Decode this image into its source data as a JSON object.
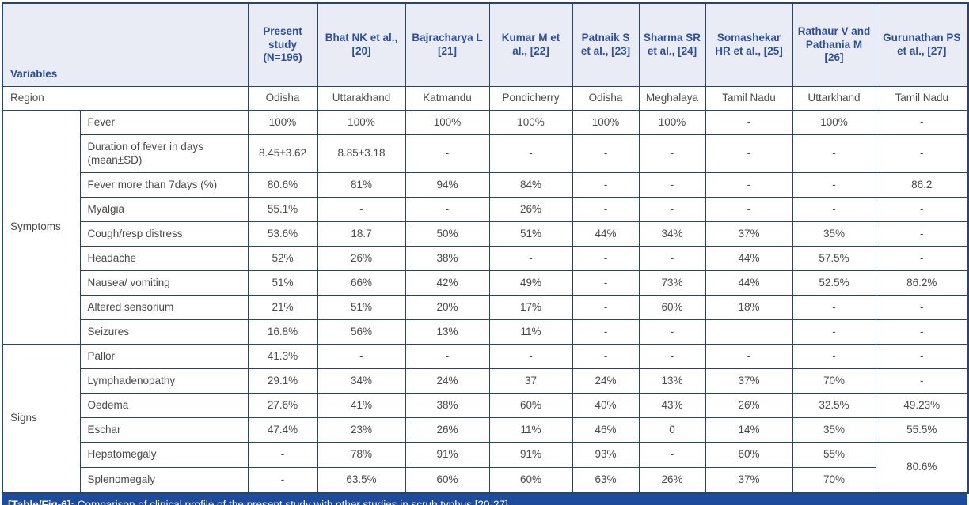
{
  "colors": {
    "border": "#264672",
    "header_bg": "#e9ebf5",
    "header_text": "#2d4f9f",
    "body_text": "#4a4a4a",
    "caption_bg": "#1e4c9c"
  },
  "table": {
    "header": {
      "variables_label": "Variables",
      "studies": [
        "Present study (N=196)",
        "Bhat NK et al., [20]",
        "Bajracharya L [21]",
        "Kumar M et al., [22]",
        "Patnaik S et al., [23]",
        "Sharma SR et al., [24]",
        "Somashekar HR et al., [25]",
        "Rathaur V and Pathania M [26]",
        "Gurunathan PS et al., [27]"
      ]
    },
    "region_row": {
      "label": "Region",
      "values": [
        "Odisha",
        "Uttarakhand",
        "Katmandu",
        "Pondicherry",
        "Odisha",
        "Meghalaya",
        "Tamil Nadu",
        "Uttarkhand",
        "Tamil Nadu"
      ]
    },
    "groups": [
      {
        "name": "Symptoms",
        "rows": [
          {
            "label": "Fever",
            "values": [
              "100%",
              "100%",
              "100%",
              "100%",
              "100%",
              "100%",
              "-",
              "100%",
              "-"
            ]
          },
          {
            "label": "Duration of fever in days (mean±SD)",
            "tall": true,
            "values": [
              "8.45±3.62",
              "8.85±3.18",
              "-",
              "-",
              "-",
              "-",
              "-",
              "-",
              "-"
            ]
          },
          {
            "label": "Fever more than 7days (%)",
            "values": [
              "80.6%",
              "81%",
              "94%",
              "84%",
              "-",
              "-",
              "-",
              "-",
              "86.2"
            ]
          },
          {
            "label": "Myalgia",
            "values": [
              "55.1%",
              "-",
              "-",
              "26%",
              "-",
              "-",
              "-",
              "-",
              "-"
            ]
          },
          {
            "label": "Cough/resp distress",
            "values": [
              "53.6%",
              "18.7",
              "50%",
              "51%",
              "44%",
              "34%",
              "37%",
              "35%",
              "-"
            ]
          },
          {
            "label": "Headache",
            "values": [
              "52%",
              "26%",
              "38%",
              "-",
              "-",
              "-",
              "44%",
              "57.5%",
              "-"
            ]
          },
          {
            "label": "Nausea/ vomiting",
            "values": [
              "51%",
              "66%",
              "42%",
              "49%",
              "-",
              "73%",
              "44%",
              "52.5%",
              "86.2%"
            ]
          },
          {
            "label": "Altered sensorium",
            "values": [
              "21%",
              "51%",
              "20%",
              "17%",
              "-",
              "60%",
              "18%",
              "-",
              "-"
            ]
          },
          {
            "label": "Seizures",
            "values": [
              "16.8%",
              "56%",
              "13%",
              "11%",
              "-",
              "-",
              "",
              "-",
              "-"
            ]
          }
        ]
      },
      {
        "name": "Signs",
        "rows": [
          {
            "label": "Pallor",
            "values": [
              "41.3%",
              "-",
              "-",
              "-",
              "-",
              "-",
              "-",
              "-",
              "-"
            ]
          },
          {
            "label": "Lymphadenopathy",
            "values": [
              "29.1%",
              "34%",
              "24%",
              "37",
              "24%",
              "13%",
              "37%",
              "70%",
              "-"
            ]
          },
          {
            "label": "Oedema",
            "values": [
              "27.6%",
              "41%",
              "38%",
              "60%",
              "40%",
              "43%",
              "26%",
              "32.5%",
              "49.23%"
            ]
          },
          {
            "label": "Eschar",
            "values": [
              "47.4%",
              "23%",
              "26%",
              "11%",
              "46%",
              "0",
              "14%",
              "35%",
              "55.5%"
            ]
          },
          {
            "label": "Hepatomegaly",
            "last": true,
            "values": [
              "-",
              "78%",
              "91%",
              "91%",
              "93%",
              "-",
              "60%",
              "55%"
            ],
            "merged_cell": {
              "value": "80.6%",
              "rowspan": 2
            }
          },
          {
            "label": "Splenomegaly",
            "last": true,
            "values": [
              "-",
              "63.5%",
              "60%",
              "60%",
              "63%",
              "26%",
              "37%",
              "70%"
            ]
          }
        ]
      }
    ],
    "caption": {
      "tag": "[Table/Fig-6]:",
      "text": "Comparison of clinical profile of the present study with other studies in scrub typhus [20-27]."
    }
  }
}
